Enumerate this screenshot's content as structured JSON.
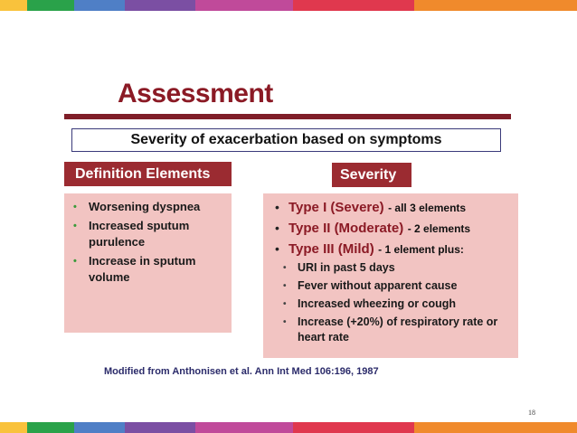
{
  "colors": {
    "accent": "#9b2b31",
    "title": "#8b1a25",
    "panel": "#f2c4c2",
    "stripe": [
      "#f9c23c",
      "#2aa24a",
      "#4f7fc6",
      "#7b4fa3",
      "#c04a9a",
      "#e0384e",
      "#f08a2c"
    ]
  },
  "slide": {
    "title": "Assessment",
    "subtitle": "Severity of exacerbation based on symptoms",
    "definition_header": "Definition Elements",
    "severity_header": "Severity",
    "definition_elements": [
      "Worsening dyspnea",
      "Increased sputum purulence",
      "Increase in sputum volume"
    ],
    "severity": [
      {
        "type": "Type I (Severe)",
        "detail": "- all 3 elements"
      },
      {
        "type": "Type II (Moderate)",
        "detail": "- 2 elements"
      },
      {
        "type": "Type III (Mild)",
        "detail": "- 1 element plus:"
      }
    ],
    "mild_criteria": [
      "URI in past 5 days",
      "Fever without apparent cause",
      "Increased wheezing or cough",
      "Increase (+20%) of respiratory rate or heart rate"
    ],
    "citation": "Modified from Anthonisen et al.  Ann Int Med 106:196, 1987",
    "page_number": "18"
  }
}
